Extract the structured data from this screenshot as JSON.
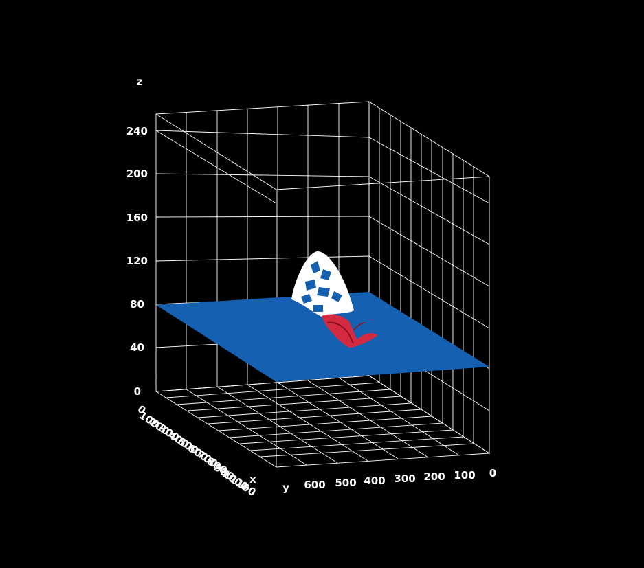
{
  "chart_data": {
    "type": "surface3d",
    "zlabel": "z",
    "xlabel": "x",
    "ylabel": "y",
    "z_ticks": [
      "0",
      "40",
      "80",
      "120",
      "160",
      "200",
      "240"
    ],
    "y_ticks": [
      "600",
      "500",
      "400",
      "300",
      "200",
      "100",
      "0"
    ],
    "x_ticks": [
      "0",
      "100",
      "200",
      "300",
      "400",
      "500",
      "600",
      "700",
      "800",
      "900",
      "1000",
      "1100"
    ],
    "xlim": [
      0,
      1150
    ],
    "ylim": [
      0,
      650
    ],
    "zlim": [
      0,
      255
    ],
    "grid": true,
    "background": "#000000",
    "plane_color": "#1560b0",
    "plane_z": 80,
    "surface_colors": {
      "plane": "#1560b0",
      "letters": "#ffffff",
      "ribbon": "#d42a40"
    }
  }
}
